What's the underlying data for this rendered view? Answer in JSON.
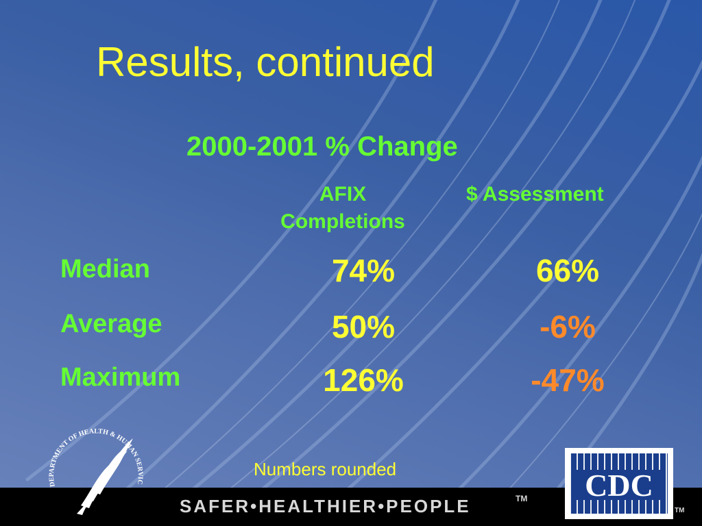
{
  "slide": {
    "title": "Results, continued",
    "subtitle": "2000-2001 % Change",
    "columns": [
      "AFIX Completions",
      "$ Assessment"
    ],
    "rows": [
      {
        "label": "Median",
        "afix": "74%",
        "assessment": "66%"
      },
      {
        "label": "Average",
        "afix": "50%",
        "assessment": "-6%"
      },
      {
        "label": "Maximum",
        "afix": "126%",
        "assessment": "-47%"
      }
    ],
    "note": "Numbers rounded"
  },
  "footer": {
    "tagline": "SAFER•HEALTHIER•PEOPLE",
    "tm": "TM",
    "cdc_tm": "TM"
  },
  "logos": {
    "hhs_seal_text": "DEPARTMENT OF HEALTH & HUMAN SERVICES·USA",
    "cdc_text": "CDC",
    "hhs_seal_icon": "hhs-eagle-seal",
    "cdc_icon": "cdc-logo"
  },
  "colors": {
    "title": "#ffff33",
    "labels": "#66ff33",
    "positive_value": "#ffff33",
    "negative_value": "#ff8a2a",
    "background": "#2a57a8",
    "footer": "#000000"
  }
}
